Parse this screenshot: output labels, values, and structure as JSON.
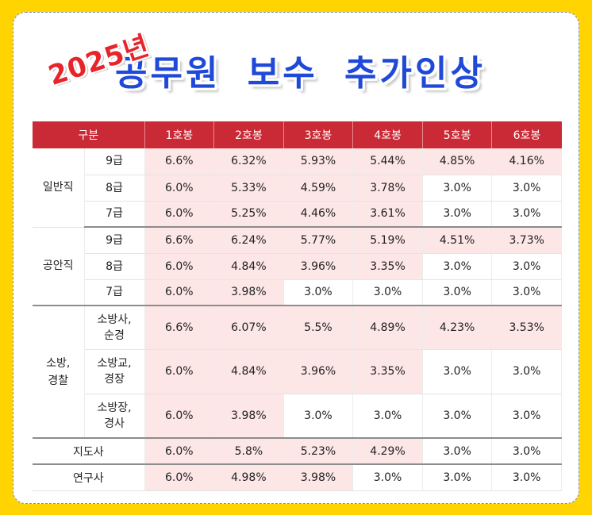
{
  "header": {
    "year": "2025년",
    "title": "공무원 보수 추가인상"
  },
  "table": {
    "header": {
      "category": "구분",
      "steps": [
        "1호봉",
        "2호봉",
        "3호봉",
        "4호봉",
        "5호봉",
        "6호봉"
      ]
    },
    "groups": {
      "general": {
        "name": "일반직",
        "rows": [
          {
            "sub": "9급",
            "v": [
              "6.6%",
              "6.32%",
              "5.93%",
              "5.44%",
              "4.85%",
              "4.16%"
            ]
          },
          {
            "sub": "8급",
            "v": [
              "6.0%",
              "5.33%",
              "4.59%",
              "3.78%",
              "3.0%",
              "3.0%"
            ]
          },
          {
            "sub": "7급",
            "v": [
              "6.0%",
              "5.25%",
              "4.46%",
              "3.61%",
              "3.0%",
              "3.0%"
            ]
          }
        ]
      },
      "security": {
        "name": "공안직",
        "rows": [
          {
            "sub": "9급",
            "v": [
              "6.6%",
              "6.24%",
              "5.77%",
              "5.19%",
              "4.51%",
              "3.73%"
            ]
          },
          {
            "sub": "8급",
            "v": [
              "6.0%",
              "4.84%",
              "3.96%",
              "3.35%",
              "3.0%",
              "3.0%"
            ]
          },
          {
            "sub": "7급",
            "v": [
              "6.0%",
              "3.98%",
              "3.0%",
              "3.0%",
              "3.0%",
              "3.0%"
            ]
          }
        ]
      },
      "fire_police": {
        "name_line1": "소방,",
        "name_line2": "경찰",
        "rows": [
          {
            "sub1": "소방사,",
            "sub2": "순경",
            "v": [
              "6.6%",
              "6.07%",
              "5.5%",
              "4.89%",
              "4.23%",
              "3.53%"
            ]
          },
          {
            "sub1": "소방교,",
            "sub2": "경장",
            "v": [
              "6.0%",
              "4.84%",
              "3.96%",
              "3.35%",
              "3.0%",
              "3.0%"
            ]
          },
          {
            "sub1": "소방장,",
            "sub2": "경사",
            "v": [
              "6.0%",
              "3.98%",
              "3.0%",
              "3.0%",
              "3.0%",
              "3.0%"
            ]
          }
        ]
      },
      "instructor": {
        "name": "지도사",
        "v": [
          "6.0%",
          "5.8%",
          "5.23%",
          "4.29%",
          "3.0%",
          "3.0%"
        ]
      },
      "researcher": {
        "name": "연구사",
        "v": [
          "6.0%",
          "4.98%",
          "3.98%",
          "3.0%",
          "3.0%",
          "3.0%"
        ]
      }
    },
    "highlight_color": "#fde6e6",
    "header_color": "#c92a35"
  }
}
